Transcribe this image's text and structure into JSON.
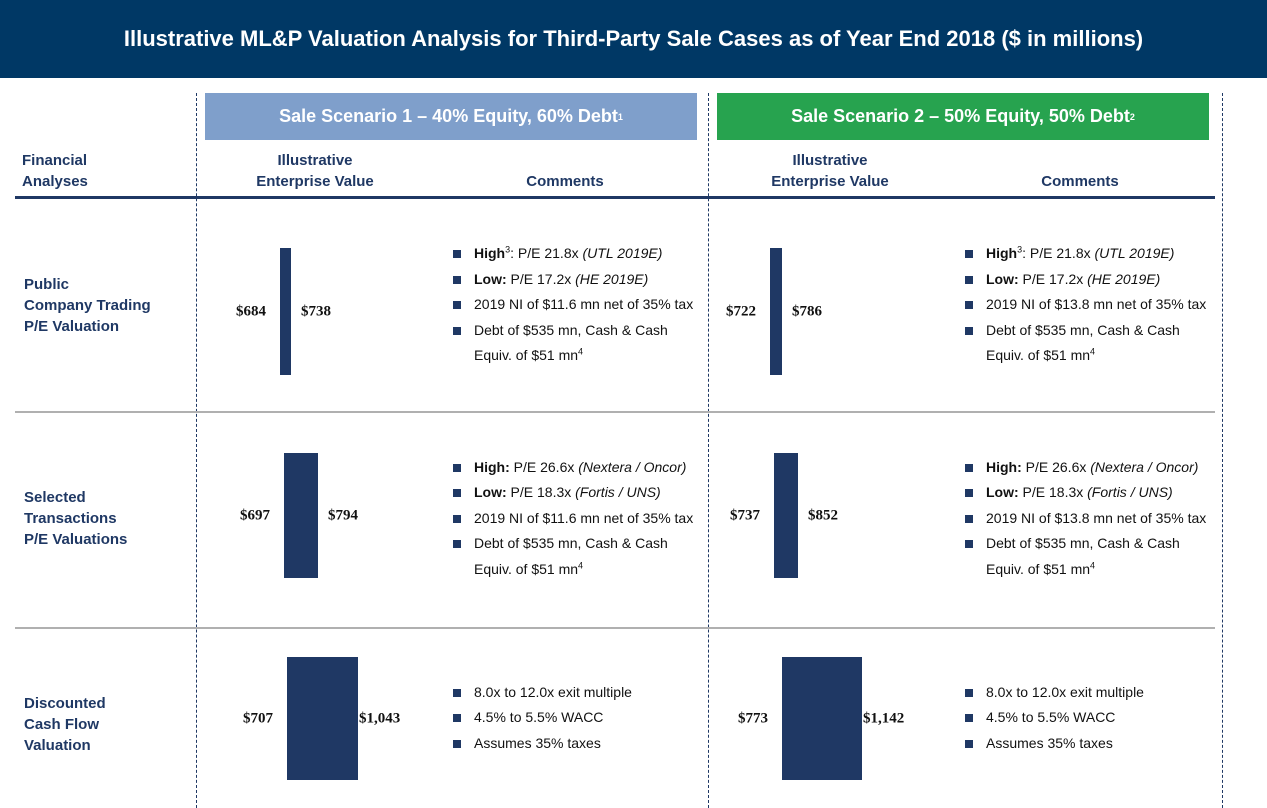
{
  "header": {
    "title": "Illustrative ML&P Valuation Analysis for Third-Party Sale Cases as of Year End 2018 ($ in millions)"
  },
  "columns": {
    "analyses": [
      "Financial",
      "Analyses"
    ],
    "value": [
      "Illustrative",
      "Enterprise Value"
    ],
    "comments": "Comments"
  },
  "scenarios": [
    {
      "title": {
        "text": "Sale Scenario 1 – 40% Equity, 60% Debt",
        "note": "1"
      },
      "rows": [
        {
          "low": "$684",
          "high": "$738",
          "comments": [
            {
              "b": "High",
              "sup": "3",
              "t": ": P/E 21.8x ",
              "i": "(UTL 2019E)"
            },
            {
              "b": "Low:",
              "t": " P/E 17.2x ",
              "i": "(HE 2019E)"
            },
            {
              "t": "2019 NI of $11.6 mn net of 35% tax"
            },
            {
              "t": "Debt of $535 mn, Cash & Cash Equiv. of $51 mn",
              "sup": "4"
            }
          ]
        },
        {
          "low": "$697",
          "high": "$794",
          "comments": [
            {
              "b": "High:",
              "t": " P/E 26.6x ",
              "i": "(Nextera / Oncor)"
            },
            {
              "b": "Low:",
              "t": " P/E 18.3x ",
              "i": "(Fortis / UNS)"
            },
            {
              "t": "2019 NI of $11.6 mn net of 35% tax"
            },
            {
              "t": "Debt of $535 mn, Cash & Cash Equiv. of $51 mn",
              "sup": "4"
            }
          ]
        },
        {
          "low": "$707",
          "high": "$1,043",
          "comments": [
            {
              "t": "8.0x to 12.0x exit multiple"
            },
            {
              "t": "4.5% to 5.5% WACC"
            },
            {
              "t": "Assumes 35% taxes"
            }
          ]
        }
      ]
    },
    {
      "title": {
        "text": "Sale Scenario 2 – 50% Equity, 50% Debt",
        "note": "2"
      },
      "rows": [
        {
          "low": "$722",
          "high": "$786",
          "comments": [
            {
              "b": "High",
              "sup": "3",
              "t": ": P/E 21.8x ",
              "i": "(UTL 2019E)"
            },
            {
              "b": "Low:",
              "t": " P/E 17.2x ",
              "i": "(HE 2019E)"
            },
            {
              "t": "2019 NI of $13.8 mn net of 35% tax"
            },
            {
              "t": "Debt of $535 mn, Cash & Cash Equiv. of $51 mn",
              "sup": "4"
            }
          ]
        },
        {
          "low": "$737",
          "high": "$852",
          "comments": [
            {
              "b": "High:",
              "t": " P/E 26.6x ",
              "i": "(Nextera / Oncor)"
            },
            {
              "b": "Low:",
              "t": " P/E 18.3x ",
              "i": "(Fortis / UNS)"
            },
            {
              "t": "2019 NI of $13.8 mn net of 35% tax"
            },
            {
              "t": "Debt of $535 mn, Cash & Cash Equiv. of $51 mn",
              "sup": "4"
            }
          ]
        },
        {
          "low": "$773",
          "high": "$1,142",
          "comments": [
            {
              "t": "8.0x to 12.0x exit multiple"
            },
            {
              "t": "4.5% to 5.5% WACC"
            },
            {
              "t": "Assumes 35% taxes"
            }
          ]
        }
      ]
    }
  ],
  "rows": [
    {
      "label": [
        "Public",
        "Company Trading",
        "P/E Valuation"
      ]
    },
    {
      "label": [
        "Selected",
        "Transactions",
        "P/E Valuations"
      ]
    },
    {
      "label": [
        "Discounted",
        "Cash Flow",
        "Valuation"
      ]
    }
  ]
}
